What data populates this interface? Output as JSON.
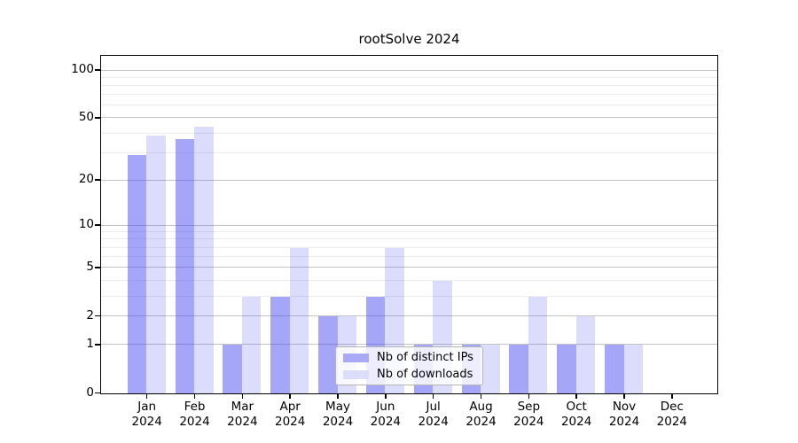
{
  "chart_data": {
    "type": "bar",
    "title": "rootSolve 2024",
    "year_label": "2024",
    "months": [
      "Jan",
      "Feb",
      "Mar",
      "Apr",
      "May",
      "Jun",
      "Jul",
      "Aug",
      "Sep",
      "Oct",
      "Nov",
      "Dec"
    ],
    "series": [
      {
        "name": "Nb of distinct IPs",
        "bar_color": "rgba(70,70,240,0.48)",
        "swatch_color": "#a9a9f6",
        "values": [
          29,
          37,
          1,
          3,
          2,
          3,
          1,
          1,
          1,
          1,
          1,
          0
        ]
      },
      {
        "name": "Nb of downloads",
        "bar_color": "rgba(70,70,240,0.19)",
        "swatch_color": "#dcdcfb",
        "values": [
          39,
          44,
          3,
          7,
          2,
          7,
          4,
          1,
          3,
          2,
          1,
          0
        ]
      }
    ],
    "y_axis": {
      "scale": "log10(value+1)",
      "ticks": [
        0,
        1,
        2,
        5,
        10,
        20,
        50,
        100
      ],
      "minor_ticks": [
        3,
        4,
        6,
        7,
        8,
        9,
        30,
        40,
        60,
        70,
        80,
        90
      ],
      "max": 100
    },
    "x_axis": {
      "tick_labels_line1": [
        "Jan",
        "Feb",
        "Mar",
        "Apr",
        "May",
        "Jun",
        "Jul",
        "Aug",
        "Sep",
        "Oct",
        "Nov",
        "Dec"
      ],
      "tick_labels_line2": [
        "2024",
        "2024",
        "2024",
        "2024",
        "2024",
        "2024",
        "2024",
        "2024",
        "2024",
        "2024",
        "2024",
        "2024"
      ]
    },
    "grid": {
      "major_color": "#c3c3c3",
      "minor_color": "#ececec"
    },
    "legend": {
      "position": "bottom-center"
    }
  }
}
